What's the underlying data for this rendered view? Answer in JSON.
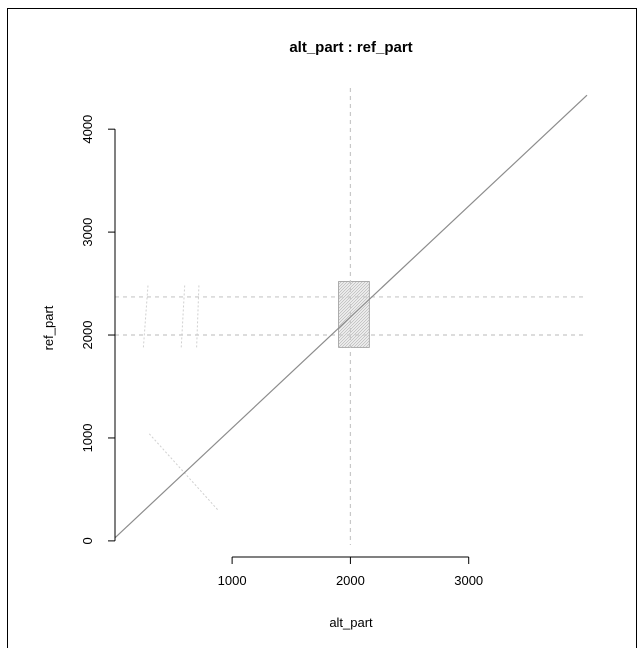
{
  "chart_data": {
    "type": "scatter",
    "title": "alt_part : ref_part",
    "xlabel": "alt_part",
    "ylabel": "ref_part",
    "x_ticks": [
      1000,
      2000,
      3000
    ],
    "y_ticks": [
      0,
      1000,
      2000,
      3000,
      4000
    ],
    "xlim": [
      10,
      4000
    ],
    "ylim": [
      -40,
      4400
    ],
    "grid": false,
    "reference_lines": {
      "vertical_x": [
        2000
      ],
      "horizontal_y": [
        2000,
        2370
      ]
    },
    "series": [
      {
        "type": "line",
        "x": [
          10,
          4000
        ],
        "y": [
          30,
          4330
        ]
      }
    ],
    "repeat_block": {
      "x_range": [
        1900,
        2160
      ],
      "y_range": [
        1880,
        2520
      ]
    },
    "faint_segments": [
      {
        "x": [
          300,
          880
        ],
        "y": [
          1040,
          300
        ]
      },
      {
        "x": [
          250,
          290
        ],
        "y": [
          1880,
          2500
        ]
      },
      {
        "x": [
          570,
          600
        ],
        "y": [
          1880,
          2500
        ]
      },
      {
        "x": [
          700,
          720
        ],
        "y": [
          1880,
          2500
        ]
      }
    ],
    "colors": {
      "line": "#8c8c8c",
      "reference": "#c8c8c8",
      "block": "#9a9a9a"
    }
  }
}
